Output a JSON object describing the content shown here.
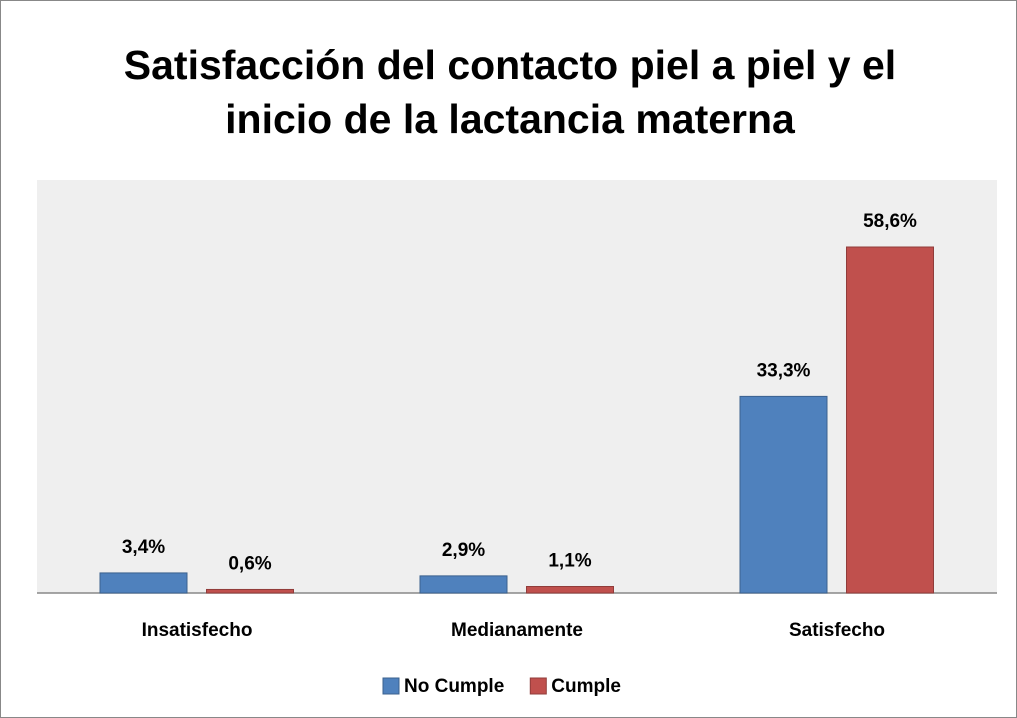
{
  "chart_data": {
    "type": "bar",
    "title": "Satisfacción del contacto piel a piel y el inicio de la lactancia materna",
    "categories": [
      "Insatisfecho",
      "Medianamente",
      "Satisfecho"
    ],
    "series": [
      {
        "name": "No Cumple",
        "color": "#4f81bd",
        "values": [
          3.4,
          2.9,
          33.3
        ],
        "value_labels": [
          "3,4%",
          "2,9%",
          "33,3%"
        ]
      },
      {
        "name": "Cumple",
        "color": "#c0504d",
        "values": [
          0.6,
          1.1,
          58.6
        ],
        "value_labels": [
          "0,6%",
          "1,1%",
          "58,6%"
        ]
      }
    ],
    "legend": "bottom"
  }
}
